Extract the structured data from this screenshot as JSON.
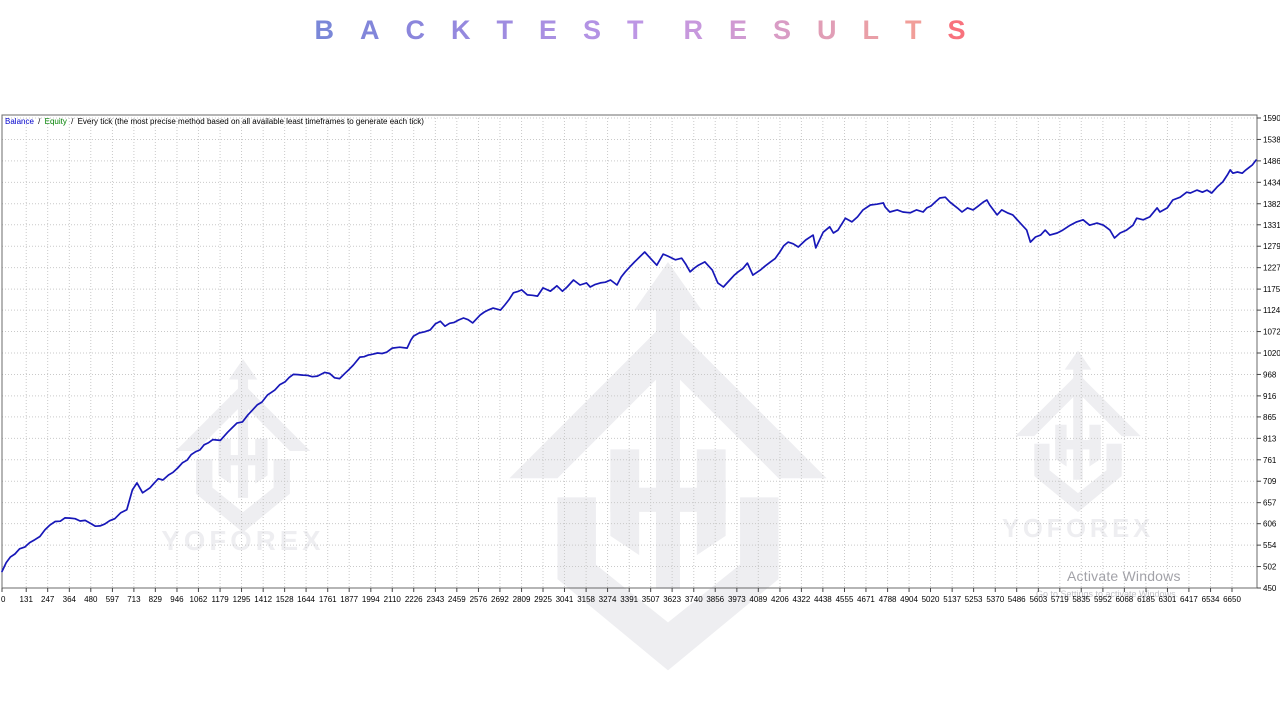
{
  "title": {
    "text": "BACKTEST RESULTS",
    "letters": [
      {
        "ch": "B",
        "color": "#7a87d8"
      },
      {
        "ch": "A",
        "color": "#8286da"
      },
      {
        "ch": "C",
        "color": "#8b86dc"
      },
      {
        "ch": "K",
        "color": "#9589de"
      },
      {
        "ch": "T",
        "color": "#9f8ce0"
      },
      {
        "ch": "E",
        "color": "#a990e2"
      },
      {
        "ch": "S",
        "color": "#b393e4"
      },
      {
        "ch": "T",
        "color": "#bd96e4"
      },
      {
        "ch": " ",
        "color": null
      },
      {
        "ch": "R",
        "color": "#c798dd"
      },
      {
        "ch": "E",
        "color": "#d09ad2"
      },
      {
        "ch": "S",
        "color": "#d99cc5"
      },
      {
        "ch": "U",
        "color": "#e19eb6"
      },
      {
        "ch": "L",
        "color": "#e99fa7"
      },
      {
        "ch": "T",
        "color": "#f19e99"
      },
      {
        "ch": "S",
        "color": "#f8727d"
      }
    ]
  },
  "chart_header": {
    "balance": "Balance",
    "equity": "Equity",
    "separator": "/",
    "method": "Every tick (the most precise method based on all available least timeframes to generate each tick)"
  },
  "watermark": {
    "brand": "YOFOREX",
    "activate_line1": "Activate Windows",
    "activate_line2": "Go to Settings to activate Windows."
  },
  "chart_data": {
    "type": "line",
    "title": "",
    "xlabel": "",
    "ylabel": "",
    "grid": "dotted",
    "legend_position": "top-left",
    "xlim": [
      0,
      6786
    ],
    "ylim": [
      450,
      1590
    ],
    "x_ticks": [
      0,
      131,
      247,
      364,
      480,
      597,
      713,
      829,
      946,
      1062,
      1179,
      1295,
      1412,
      1528,
      1644,
      1761,
      1877,
      1994,
      2110,
      2226,
      2343,
      2459,
      2576,
      2692,
      2809,
      2925,
      3041,
      3158,
      3274,
      3391,
      3507,
      3623,
      3740,
      3856,
      3973,
      4089,
      4206,
      4322,
      4438,
      4555,
      4671,
      4788,
      4904,
      5020,
      5137,
      5253,
      5370,
      5486,
      5603,
      5719,
      5835,
      5952,
      6068,
      6185,
      6301,
      6417,
      6534,
      6650
    ],
    "y_ticks": [
      450,
      502,
      554,
      606,
      657,
      709,
      761,
      813,
      865,
      916,
      968,
      1020,
      1072,
      1124,
      1175,
      1227,
      1279,
      1331,
      1382,
      1434,
      1486,
      1538,
      1590
    ],
    "series": [
      {
        "name": "Balance",
        "color": "#1717b8",
        "points": [
          [
            0,
            490
          ],
          [
            45,
            525
          ],
          [
            95,
            545
          ],
          [
            150,
            560
          ],
          [
            205,
            575
          ],
          [
            260,
            603
          ],
          [
            315,
            612
          ],
          [
            340,
            620
          ],
          [
            395,
            618
          ],
          [
            450,
            614
          ],
          [
            505,
            600
          ],
          [
            555,
            605
          ],
          [
            610,
            618
          ],
          [
            675,
            640
          ],
          [
            705,
            688
          ],
          [
            730,
            705
          ],
          [
            760,
            681
          ],
          [
            800,
            693
          ],
          [
            845,
            715
          ],
          [
            870,
            712
          ],
          [
            900,
            724
          ],
          [
            950,
            741
          ],
          [
            1000,
            760
          ],
          [
            1045,
            780
          ],
          [
            1070,
            785
          ],
          [
            1115,
            802
          ],
          [
            1140,
            810
          ],
          [
            1180,
            808
          ],
          [
            1220,
            828
          ],
          [
            1270,
            850
          ],
          [
            1300,
            853
          ],
          [
            1330,
            870
          ],
          [
            1355,
            882
          ],
          [
            1405,
            901
          ],
          [
            1435,
            918
          ],
          [
            1475,
            930
          ],
          [
            1530,
            950
          ],
          [
            1575,
            968
          ],
          [
            1650,
            966
          ],
          [
            1705,
            964
          ],
          [
            1745,
            973
          ],
          [
            1825,
            958
          ],
          [
            1855,
            971
          ],
          [
            1900,
            991
          ],
          [
            1935,
            1010
          ],
          [
            1980,
            1015
          ],
          [
            2030,
            1020
          ],
          [
            2080,
            1022
          ],
          [
            2110,
            1032
          ],
          [
            2150,
            1034
          ],
          [
            2190,
            1032
          ],
          [
            2210,
            1051
          ],
          [
            2225,
            1061
          ],
          [
            2315,
            1076
          ],
          [
            2370,
            1097
          ],
          [
            2395,
            1085
          ],
          [
            2495,
            1105
          ],
          [
            2545,
            1093
          ],
          [
            2585,
            1112
          ],
          [
            2655,
            1129
          ],
          [
            2695,
            1124
          ],
          [
            2765,
            1166
          ],
          [
            2810,
            1173
          ],
          [
            2840,
            1161
          ],
          [
            2895,
            1158
          ],
          [
            2925,
            1178
          ],
          [
            2965,
            1170
          ],
          [
            3000,
            1183
          ],
          [
            3030,
            1170
          ],
          [
            3055,
            1180
          ],
          [
            3090,
            1197
          ],
          [
            3125,
            1185
          ],
          [
            3160,
            1190
          ],
          [
            3180,
            1180
          ],
          [
            3235,
            1190
          ],
          [
            3290,
            1197
          ],
          [
            3325,
            1185
          ],
          [
            3370,
            1217
          ],
          [
            3420,
            1241
          ],
          [
            3475,
            1265
          ],
          [
            3505,
            1250
          ],
          [
            3540,
            1233
          ],
          [
            3575,
            1260
          ],
          [
            3600,
            1255
          ],
          [
            3640,
            1246
          ],
          [
            3675,
            1250
          ],
          [
            3720,
            1217
          ],
          [
            3765,
            1233
          ],
          [
            3800,
            1241
          ],
          [
            3840,
            1221
          ],
          [
            3870,
            1190
          ],
          [
            3900,
            1180
          ],
          [
            3935,
            1197
          ],
          [
            3980,
            1217
          ],
          [
            4030,
            1238
          ],
          [
            4060,
            1209
          ],
          [
            4100,
            1221
          ],
          [
            4155,
            1241
          ],
          [
            4205,
            1265
          ],
          [
            4250,
            1289
          ],
          [
            4305,
            1277
          ],
          [
            4345,
            1294
          ],
          [
            4385,
            1306
          ],
          [
            4400,
            1275
          ],
          [
            4440,
            1313
          ],
          [
            4475,
            1326
          ],
          [
            4495,
            1311
          ],
          [
            4520,
            1318
          ],
          [
            4560,
            1347
          ],
          [
            4595,
            1338
          ],
          [
            4625,
            1350
          ],
          [
            4655,
            1367
          ],
          [
            4695,
            1379
          ],
          [
            4730,
            1381
          ],
          [
            4765,
            1384
          ],
          [
            4775,
            1374
          ],
          [
            4800,
            1362
          ],
          [
            4840,
            1367
          ],
          [
            4870,
            1362
          ],
          [
            4910,
            1360
          ],
          [
            4945,
            1367
          ],
          [
            4980,
            1362
          ],
          [
            5000,
            1372
          ],
          [
            5045,
            1386
          ],
          [
            5070,
            1396
          ],
          [
            5100,
            1398
          ],
          [
            5125,
            1386
          ],
          [
            5165,
            1372
          ],
          [
            5190,
            1362
          ],
          [
            5220,
            1372
          ],
          [
            5250,
            1367
          ],
          [
            5305,
            1386
          ],
          [
            5325,
            1391
          ],
          [
            5340,
            1379
          ],
          [
            5380,
            1355
          ],
          [
            5405,
            1367
          ],
          [
            5435,
            1360
          ],
          [
            5465,
            1355
          ],
          [
            5505,
            1335
          ],
          [
            5540,
            1318
          ],
          [
            5560,
            1289
          ],
          [
            5615,
            1306
          ],
          [
            5640,
            1318
          ],
          [
            5665,
            1306
          ],
          [
            5705,
            1311
          ],
          [
            5735,
            1318
          ],
          [
            5775,
            1330
          ],
          [
            5810,
            1338
          ],
          [
            5845,
            1343
          ],
          [
            5880,
            1330
          ],
          [
            5920,
            1335
          ],
          [
            5955,
            1330
          ],
          [
            5990,
            1318
          ],
          [
            6015,
            1299
          ],
          [
            6045,
            1311
          ],
          [
            6080,
            1318
          ],
          [
            6115,
            1330
          ],
          [
            6135,
            1347
          ],
          [
            6170,
            1343
          ],
          [
            6205,
            1350
          ],
          [
            6245,
            1372
          ],
          [
            6260,
            1362
          ],
          [
            6300,
            1372
          ],
          [
            6330,
            1391
          ],
          [
            6370,
            1398
          ],
          [
            6405,
            1410
          ],
          [
            6425,
            1408
          ],
          [
            6460,
            1415
          ],
          [
            6490,
            1410
          ],
          [
            6515,
            1415
          ],
          [
            6540,
            1408
          ],
          [
            6570,
            1423
          ],
          [
            6600,
            1435
          ],
          [
            6625,
            1452
          ],
          [
            6640,
            1464
          ],
          [
            6655,
            1456
          ],
          [
            6680,
            1459
          ],
          [
            6705,
            1456
          ],
          [
            6725,
            1464
          ],
          [
            6745,
            1471
          ],
          [
            6760,
            1476
          ],
          [
            6780,
            1488
          ]
        ]
      }
    ],
    "colors": {
      "line": "#1717b8",
      "grid": "#c9c9c9",
      "border": "#6b6b6b",
      "axis_text": "#000000",
      "watermark": "#eeeef1"
    }
  }
}
